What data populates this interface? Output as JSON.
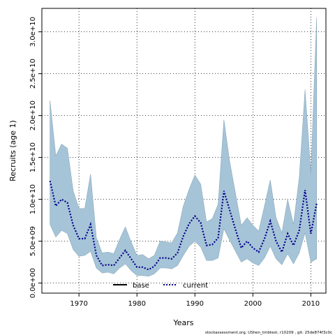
{
  "chart_data": {
    "type": "line",
    "title": "",
    "xlabel": "Years",
    "ylabel": "Recruits (age 1)",
    "xlim": [
      1963.6,
      2012.6
    ],
    "ylim": [
      -1200000000.0,
      32800000000.0
    ],
    "x_ticks": [
      1970,
      1980,
      1990,
      2000,
      2010
    ],
    "x_tick_labels": [
      "1970",
      "1980",
      "1990",
      "2000",
      "2010"
    ],
    "y_ticks": [
      0,
      5000000000.0,
      10000000000.0,
      15000000000.0,
      20000000000.0,
      25000000000.0,
      30000000000.0
    ],
    "y_tick_labels": [
      "0.0e+00",
      "5.0e+09",
      "1.0e+10",
      "1.5e+10",
      "2.0e+10",
      "2.5e+10",
      "3.0e+10"
    ],
    "grid": true,
    "legend": {
      "placement": "bottom-center",
      "entries": [
        {
          "label": "base",
          "style": "solid",
          "color": "#000000"
        },
        {
          "label": "current",
          "style": "dotted",
          "color": "#00008b"
        }
      ]
    },
    "x": [
      1965,
      1966,
      1967,
      1968,
      1969,
      1970,
      1971,
      1972,
      1973,
      1974,
      1975,
      1976,
      1977,
      1978,
      1979,
      1980,
      1981,
      1982,
      1983,
      1984,
      1985,
      1986,
      1987,
      1988,
      1989,
      1990,
      1991,
      1992,
      1993,
      1994,
      1995,
      1996,
      1997,
      1998,
      1999,
      2000,
      2001,
      2002,
      2003,
      2004,
      2005,
      2006,
      2007,
      2008,
      2009,
      2010,
      2011
    ],
    "series": [
      {
        "name": "current",
        "values": [
          12200000000.0,
          9200000000.0,
          10000000000.0,
          9600000000.0,
          6900000000.0,
          5300000000.0,
          5300000000.0,
          7000000000.0,
          3300000000.0,
          2100000000.0,
          2200000000.0,
          2100000000.0,
          3000000000.0,
          3900000000.0,
          2900000000.0,
          1900000000.0,
          1900000000.0,
          1600000000.0,
          2000000000.0,
          3000000000.0,
          3000000000.0,
          2900000000.0,
          3600000000.0,
          5600000000.0,
          7100000000.0,
          8000000000.0,
          7200000000.0,
          4500000000.0,
          4600000000.0,
          5400000000.0,
          11000000000.0,
          8700000000.0,
          6400000000.0,
          4200000000.0,
          5000000000.0,
          4200000000.0,
          3700000000.0,
          5300000000.0,
          7400000000.0,
          5000000000.0,
          3700000000.0,
          5900000000.0,
          4500000000.0,
          6300000000.0,
          11100000000.0,
          5900000000.0,
          9500000000.0
        ]
      }
    ],
    "interval": {
      "lower": [
        7000000000.0,
        5500000000.0,
        6300000000.0,
        5900000000.0,
        4000000000.0,
        3200000000.0,
        3300000000.0,
        3800000000.0,
        1800000000.0,
        1200000000.0,
        1300000000.0,
        1100000000.0,
        1800000000.0,
        2300000000.0,
        1500000000.0,
        900000000.0,
        900000000.0,
        800000000.0,
        1100000000.0,
        1800000000.0,
        1800000000.0,
        1700000000.0,
        2100000000.0,
        3300000000.0,
        4400000000.0,
        5000000000.0,
        4300000000.0,
        2700000000.0,
        2700000000.0,
        3000000000.0,
        6500000000.0,
        5100000000.0,
        3800000000.0,
        2500000000.0,
        2900000000.0,
        2400000000.0,
        2100000000.0,
        3000000000.0,
        4400000000.0,
        2900000000.0,
        2200000000.0,
        3500000000.0,
        2300000000.0,
        3600000000.0,
        6000000000.0,
        2500000000.0,
        2900000000.0
      ],
      "upper": [
        21800000000.0,
        15200000000.0,
        16600000000.0,
        16100000000.0,
        11000000000.0,
        8900000000.0,
        8900000000.0,
        13000000000.0,
        5400000000.0,
        3600000000.0,
        3700000000.0,
        3500000000.0,
        5200000000.0,
        6700000000.0,
        4900000000.0,
        3300000000.0,
        3400000000.0,
        2900000000.0,
        3300000000.0,
        5000000000.0,
        4900000000.0,
        4800000000.0,
        6000000000.0,
        9200000000.0,
        11200000000.0,
        12900000000.0,
        11800000000.0,
        7300000000.0,
        7700000000.0,
        9400000000.0,
        19500000000.0,
        14500000000.0,
        10700000000.0,
        6900000000.0,
        7800000000.0,
        6900000000.0,
        6200000000.0,
        9200000000.0,
        12300000000.0,
        7800000000.0,
        6000000000.0,
        10000000000.0,
        7000000000.0,
        12600000000.0,
        23100000000.0,
        13100000000.0,
        31700000000.0
      ]
    },
    "interval_color": "#a6c4d7"
  },
  "footer": "stockassessment.org, UShen_tmbtest, r10209 , git: 25de874f3c0c"
}
